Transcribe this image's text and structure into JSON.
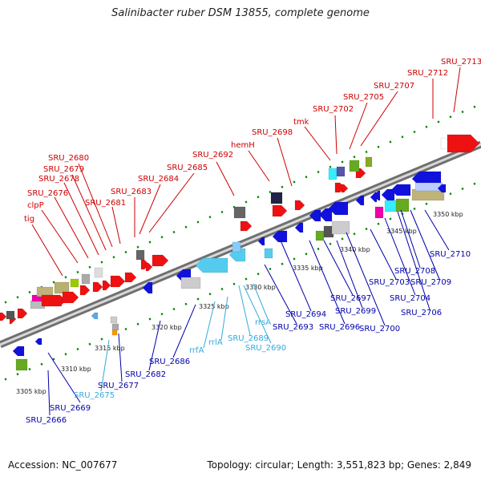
{
  "title": "Salinibacter ruber DSM 13855, complete genome",
  "footer": {
    "accession": "Accession: NC_007677",
    "stats": "Topology: circular; Length: 3,551,823 bp; Genes: 2,849"
  },
  "colors": {
    "top_label": "#cc0000",
    "bottom_label": "#0000aa",
    "rna_label": "#33aadd",
    "forward_gene": "#ee1111",
    "reverse_gene": "#1111dd",
    "backbone": "#aaaaaa",
    "tick": "#008800"
  },
  "kbp_ticks": [
    "3305 kbp",
    "3310 kbp",
    "3315 kbp",
    "3320 kbp",
    "3325 kbp",
    "3330 kbp",
    "3335 kbp",
    "3340 kbp",
    "3345 kbp",
    "3350 kbp"
  ],
  "top_genes": [
    "tig",
    "clpP",
    "SRU_2676",
    "SRU_2678",
    "SRU_2679",
    "SRU_2680",
    "SRU_2681",
    "SRU_2683",
    "SRU_2684",
    "SRU_2685",
    "SRU_2692",
    "hemH",
    "SRU_2698",
    "tmk",
    "SRU_2702",
    "SRU_2705",
    "SRU_2707",
    "SRU_2712",
    "SRU_2713"
  ],
  "bottom_genes": [
    "SRU_2666",
    "SRU_2669",
    "SRU_2675",
    "SRU_2677",
    "SRU_2682",
    "SRU_2686",
    "rrfA",
    "rrlA",
    "SRU_2689",
    "SRU_2690",
    "rrsA",
    "SRU_2693",
    "SRU_2694",
    "SRU_2696",
    "SRU_2697",
    "SRU_2699",
    "SRU_2700",
    "SRU_2703",
    "SRU_2704",
    "SRU_2706",
    "SRU_2708",
    "SRU_2709",
    "SRU_2710"
  ]
}
